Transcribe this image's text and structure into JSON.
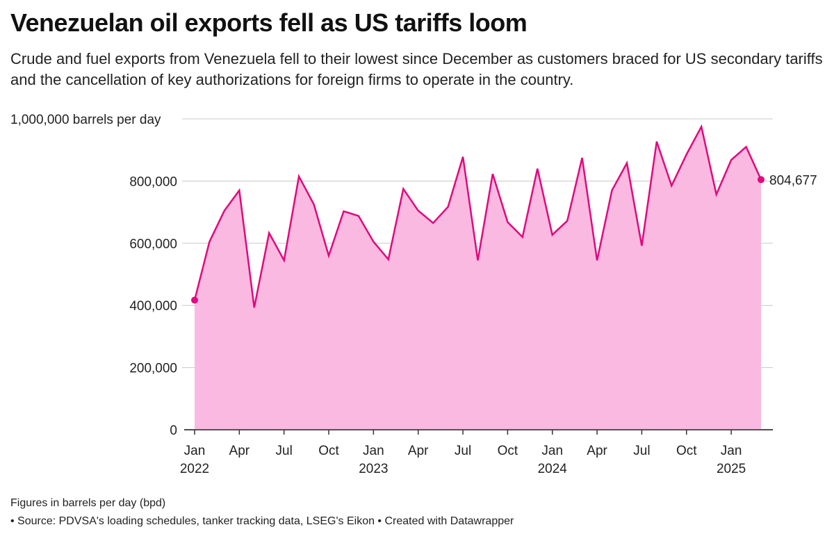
{
  "title": "Venezuelan oil exports fell as US tariffs loom",
  "subtitle": "Crude and fuel exports from Venezuela fell to their lowest since December as customers braced for US secondary tariffs and the cancellation of key authorizations for foreign firms to operate in the country.",
  "notes": "Figures in barrels per day (bpd)",
  "source": "• Source: PDVSA's loading schedules, tanker tracking data, LSEG's Eikon • Created with Datawrapper",
  "colors": {
    "line": "#e0097e",
    "area": "#f9b9e0",
    "grid": "#c8c8c8"
  },
  "chart_data": {
    "type": "area",
    "ylabel": "1,000,000 barrels per day",
    "ylim": [
      0,
      1000000
    ],
    "yticks": [
      0,
      200000,
      400000,
      600000,
      800000,
      1000000
    ],
    "ytick_labels": [
      "0",
      "200,000",
      "400,000",
      "600,000",
      "800,000",
      "1,000,000 barrels per day"
    ],
    "x_tick_labels": [
      {
        "index": 0,
        "month": "Jan",
        "year": "2022"
      },
      {
        "index": 3,
        "month": "Apr",
        "year": ""
      },
      {
        "index": 6,
        "month": "Jul",
        "year": ""
      },
      {
        "index": 9,
        "month": "Oct",
        "year": ""
      },
      {
        "index": 12,
        "month": "Jan",
        "year": "2023"
      },
      {
        "index": 15,
        "month": "Apr",
        "year": ""
      },
      {
        "index": 18,
        "month": "Jul",
        "year": ""
      },
      {
        "index": 21,
        "month": "Oct",
        "year": ""
      },
      {
        "index": 24,
        "month": "Jan",
        "year": "2024"
      },
      {
        "index": 27,
        "month": "Apr",
        "year": ""
      },
      {
        "index": 30,
        "month": "Jul",
        "year": ""
      },
      {
        "index": 33,
        "month": "Oct",
        "year": ""
      },
      {
        "index": 36,
        "month": "Jan",
        "year": "2025"
      }
    ],
    "x": [
      "2022-01",
      "2022-02",
      "2022-03",
      "2022-04",
      "2022-05",
      "2022-06",
      "2022-07",
      "2022-08",
      "2022-09",
      "2022-10",
      "2022-11",
      "2022-12",
      "2023-01",
      "2023-02",
      "2023-03",
      "2023-04",
      "2023-05",
      "2023-06",
      "2023-07",
      "2023-08",
      "2023-09",
      "2023-10",
      "2023-11",
      "2023-12",
      "2024-01",
      "2024-02",
      "2024-03",
      "2024-04",
      "2024-05",
      "2024-06",
      "2024-07",
      "2024-08",
      "2024-09",
      "2024-10",
      "2024-11",
      "2024-12",
      "2025-01",
      "2025-02",
      "2025-03"
    ],
    "values": [
      417000,
      605000,
      705000,
      770000,
      393000,
      633000,
      545000,
      815000,
      725000,
      560000,
      703000,
      688000,
      605000,
      548000,
      775000,
      705000,
      665000,
      717000,
      878000,
      545000,
      823000,
      668000,
      620000,
      840000,
      627000,
      672000,
      875000,
      545000,
      770000,
      858000,
      592000,
      927000,
      785000,
      886000,
      975000,
      757000,
      868000,
      910000,
      804677
    ],
    "end_label": "804,677",
    "grid": true
  }
}
